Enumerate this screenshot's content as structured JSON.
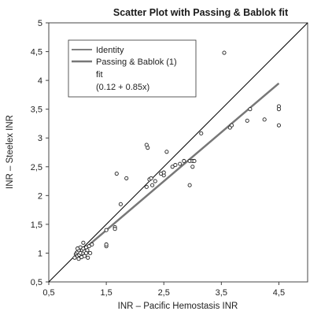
{
  "chart_data": {
    "type": "scatter",
    "title": "Scatter Plot with Passing & Bablok fit",
    "xlabel": "INR – Pacific Hemostasis INR",
    "ylabel": "INR – Steelex INR",
    "xlim": [
      0.5,
      5
    ],
    "ylim": [
      0.5,
      5
    ],
    "x_ticks": [
      "0,5",
      "1,5",
      "2,5",
      "3,5",
      "4,5"
    ],
    "x_tick_values": [
      0.5,
      1.5,
      2.5,
      3.5,
      4.5
    ],
    "y_ticks": [
      "0,5",
      "1",
      "1,5",
      "2",
      "2,5",
      "3",
      "3,5",
      "4",
      "4,5",
      "5"
    ],
    "y_tick_values": [
      0.5,
      1,
      1.5,
      2,
      2.5,
      3,
      3.5,
      4,
      4.5,
      5
    ],
    "grid": false,
    "legend_position": "top-left",
    "series": [
      {
        "kind": "points",
        "values": [
          [
            0.95,
            0.92
          ],
          [
            0.97,
            0.98
          ],
          [
            0.98,
            1.0
          ],
          [
            1.0,
            0.95
          ],
          [
            1.0,
            1.02
          ],
          [
            1.02,
            0.9
          ],
          [
            1.02,
            1.05
          ],
          [
            1.03,
            0.97
          ],
          [
            1.05,
            1.0
          ],
          [
            1.05,
            1.1
          ],
          [
            1.07,
            0.93
          ],
          [
            1.08,
            1.05
          ],
          [
            1.1,
            1.0
          ],
          [
            1.1,
            1.08
          ],
          [
            1.12,
            0.95
          ],
          [
            1.12,
            1.03
          ],
          [
            1.15,
            1.0
          ],
          [
            1.15,
            1.1
          ],
          [
            1.17,
            1.05
          ],
          [
            1.18,
            0.92
          ],
          [
            1.2,
            1.12
          ],
          [
            1.22,
            1.0
          ],
          [
            1.25,
            1.15
          ],
          [
            1.1,
            1.18
          ],
          [
            1.0,
            1.08
          ],
          [
            1.5,
            1.12
          ],
          [
            1.5,
            1.15
          ],
          [
            1.5,
            1.4
          ],
          [
            1.65,
            1.45
          ],
          [
            1.65,
            1.42
          ],
          [
            1.68,
            2.38
          ],
          [
            1.75,
            1.85
          ],
          [
            1.85,
            2.3
          ],
          [
            2.2,
            2.15
          ],
          [
            2.2,
            2.88
          ],
          [
            2.22,
            2.83
          ],
          [
            2.25,
            2.28
          ],
          [
            2.28,
            2.3
          ],
          [
            2.3,
            2.18
          ],
          [
            2.35,
            2.25
          ],
          [
            2.45,
            2.38
          ],
          [
            2.5,
            2.35
          ],
          [
            2.5,
            2.4
          ],
          [
            2.55,
            2.76
          ],
          [
            2.65,
            2.5
          ],
          [
            2.7,
            2.53
          ],
          [
            2.78,
            2.55
          ],
          [
            2.85,
            2.6
          ],
          [
            2.95,
            2.18
          ],
          [
            2.95,
            2.6
          ],
          [
            3.0,
            2.6
          ],
          [
            3.0,
            2.5
          ],
          [
            3.03,
            2.6
          ],
          [
            3.15,
            3.08
          ],
          [
            3.55,
            4.48
          ],
          [
            3.65,
            3.18
          ],
          [
            3.68,
            3.22
          ],
          [
            3.95,
            3.3
          ],
          [
            4.0,
            3.5
          ],
          [
            4.25,
            3.32
          ],
          [
            4.5,
            3.55
          ],
          [
            4.5,
            3.5
          ],
          [
            4.5,
            3.22
          ]
        ]
      },
      {
        "name": "Identity",
        "kind": "line",
        "color": "#000000",
        "values": [
          [
            0.5,
            0.5
          ],
          [
            5,
            5
          ]
        ]
      },
      {
        "name": "Passing & Bablok (1) fit (0.12 + 0.85x)",
        "kind": "line",
        "color": "#777777",
        "values": [
          [
            0.95,
            0.93
          ],
          [
            4.5,
            3.95
          ]
        ]
      }
    ],
    "legend": {
      "line1": "Identity",
      "line2": "Passing & Bablok (1)",
      "line3": "fit",
      "line4": "(0.12 + 0.85x)"
    }
  }
}
